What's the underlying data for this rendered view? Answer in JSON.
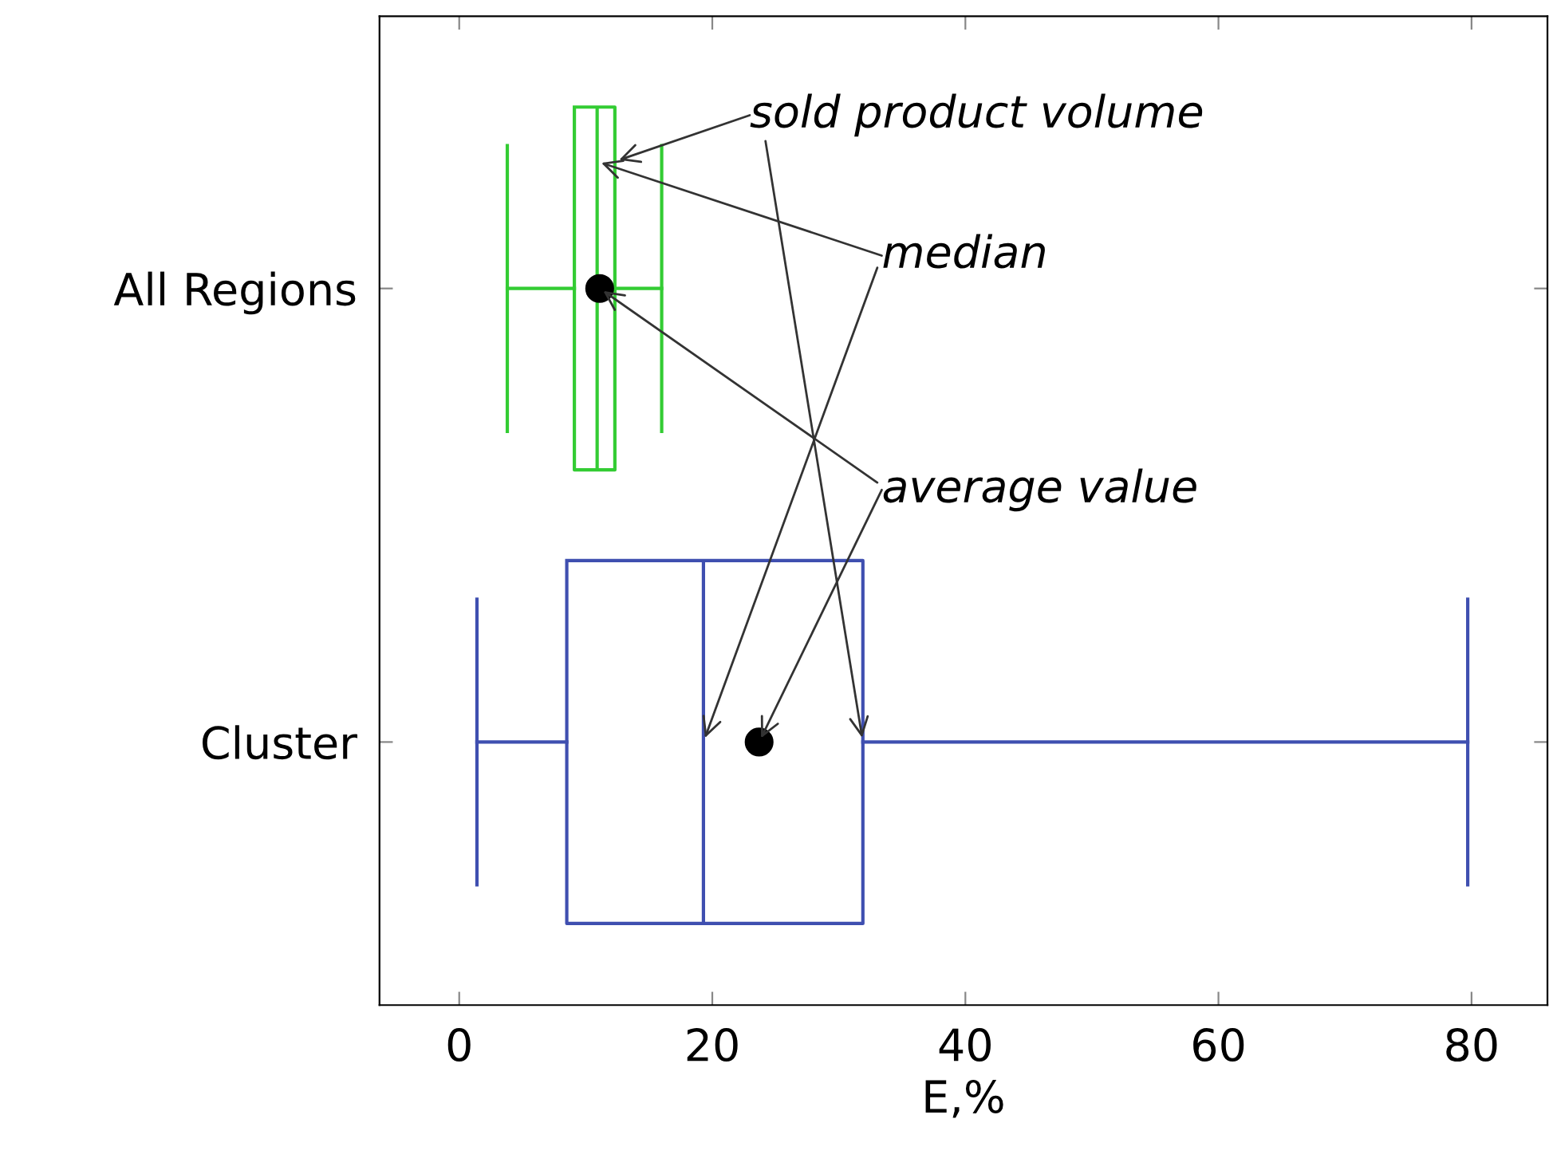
{
  "chart_data": {
    "type": "box",
    "orientation": "horizontal",
    "categories": [
      "All Regions",
      "Cluster"
    ],
    "boxes": [
      {
        "low": 3.8,
        "q1": 9.1,
        "median": 10.9,
        "q3": 12.3,
        "high": 16.0,
        "mean": 11.1
      },
      {
        "low": 1.4,
        "q1": 8.5,
        "median": 19.3,
        "q3": 31.9,
        "high": 79.7,
        "mean": 23.7
      }
    ],
    "colors": [
      "#33cc33",
      "#3f4fb0"
    ],
    "xlabel": "E,%",
    "xlim": [
      -6.3,
      86
    ],
    "xticks": [
      0,
      20,
      40,
      60,
      80
    ],
    "annotations": [
      {
        "text": "sold product volume",
        "x": 31.9,
        "y": "Cluster"
      },
      {
        "text": "median",
        "x": 19.3,
        "y": "Cluster"
      },
      "average value"
    ]
  }
}
